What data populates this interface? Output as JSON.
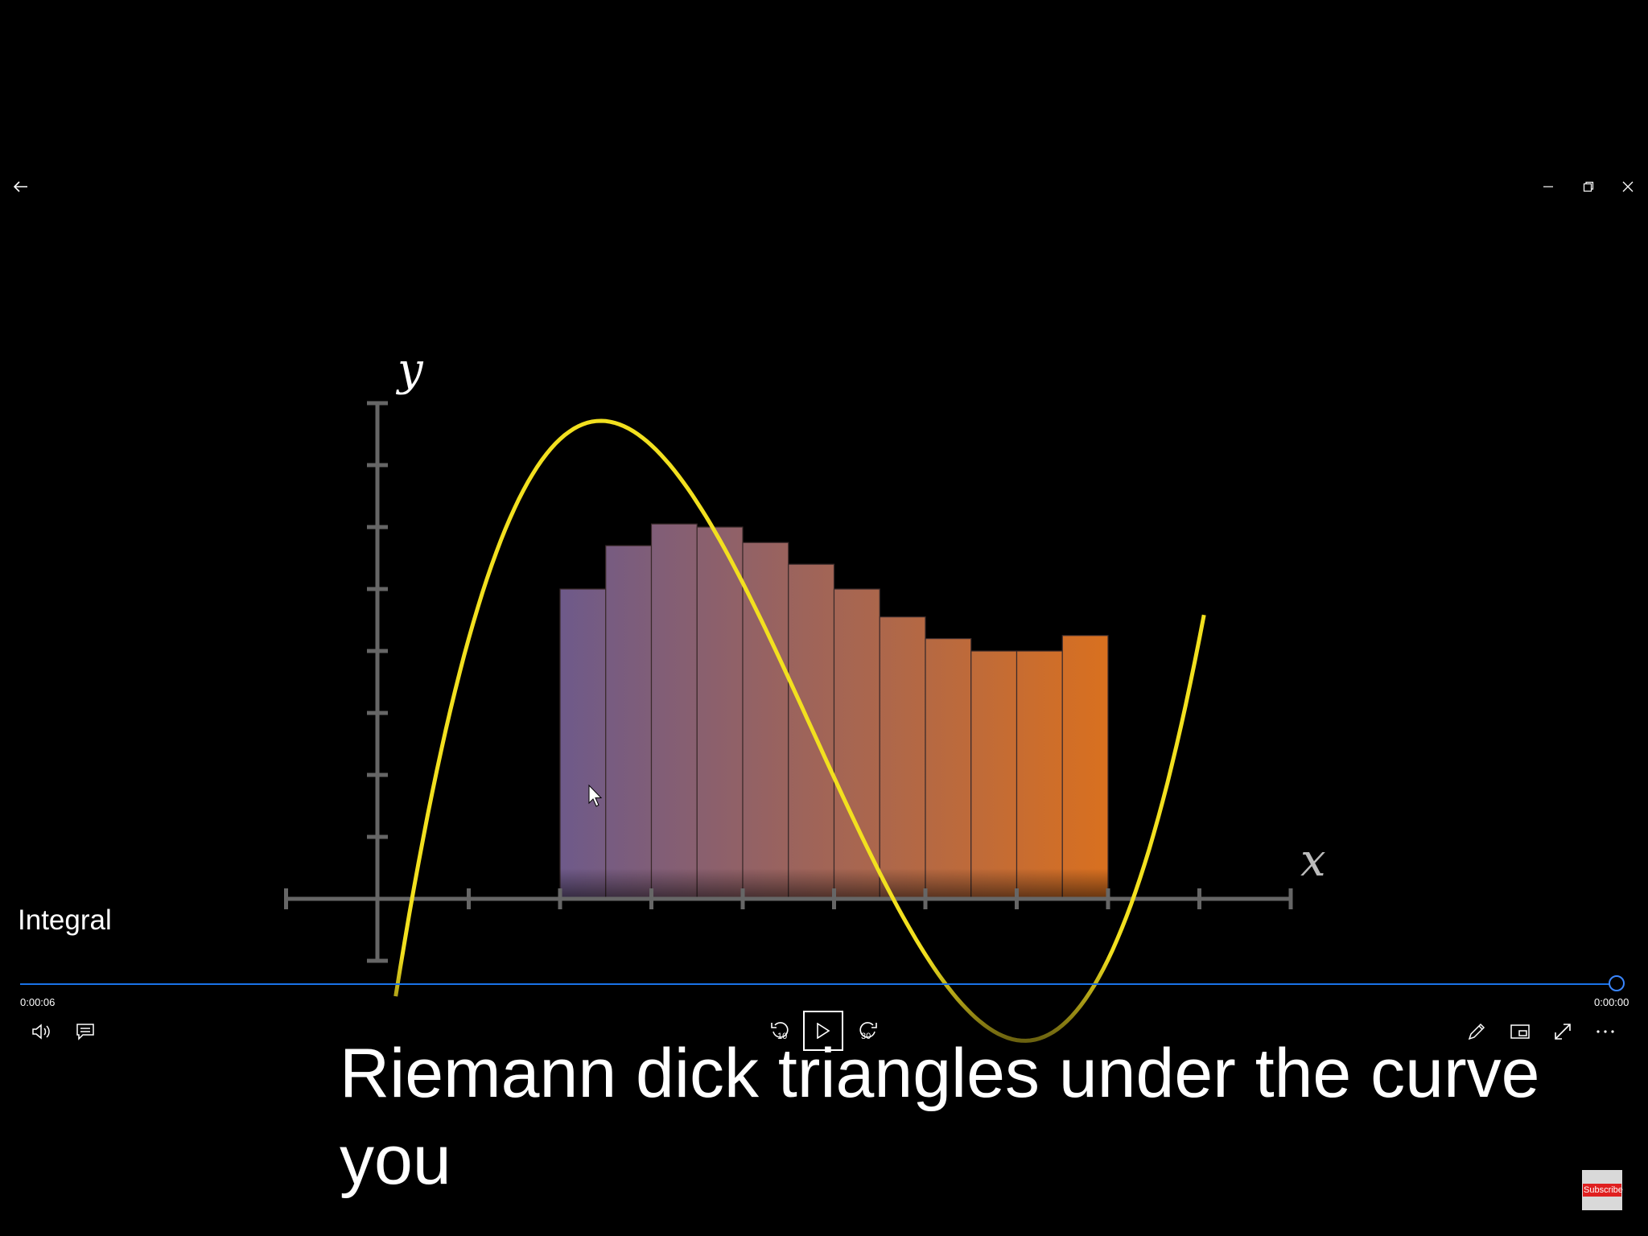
{
  "window": {
    "back_icon": "arrow-left-icon",
    "minimize_icon": "minimize-icon",
    "restore_icon": "restore-icon",
    "close_icon": "close-icon"
  },
  "video": {
    "title": "Integral",
    "current_time": "0:00:06",
    "remaining_time": "0:00:00",
    "progress": 1.0,
    "caption_line1": "Riemann dick triangles under the curve",
    "caption_line2": "you",
    "subscribe_label": "Subscribe"
  },
  "controls": {
    "volume_icon": "volume-icon",
    "captions_icon": "captions-icon",
    "skip_back_label": "10",
    "play_icon": "play-icon",
    "skip_forward_label": "30",
    "edit_icon": "pencil-icon",
    "miniview_icon": "mini-view-icon",
    "fullscreen_icon": "fullscreen-icon",
    "more_icon": "more-icon"
  },
  "graph": {
    "x_label": "x",
    "y_label": "y",
    "colors": {
      "curve": "#f2e01f",
      "axis": "#666666",
      "rect_start": "#6e5a8a",
      "rect_end": "#d9701f"
    },
    "x_ticks": [
      -1,
      1,
      2,
      3,
      4,
      5,
      6,
      7,
      8,
      9,
      10
    ],
    "y_ticks": [
      1,
      2,
      3,
      4,
      5,
      6,
      7,
      8,
      -1
    ],
    "rect_heights": [
      5,
      5.7,
      6.05,
      6.0,
      5.75,
      5.4,
      5.0,
      4.55,
      4.2,
      4.0,
      4.0,
      4.25
    ]
  }
}
